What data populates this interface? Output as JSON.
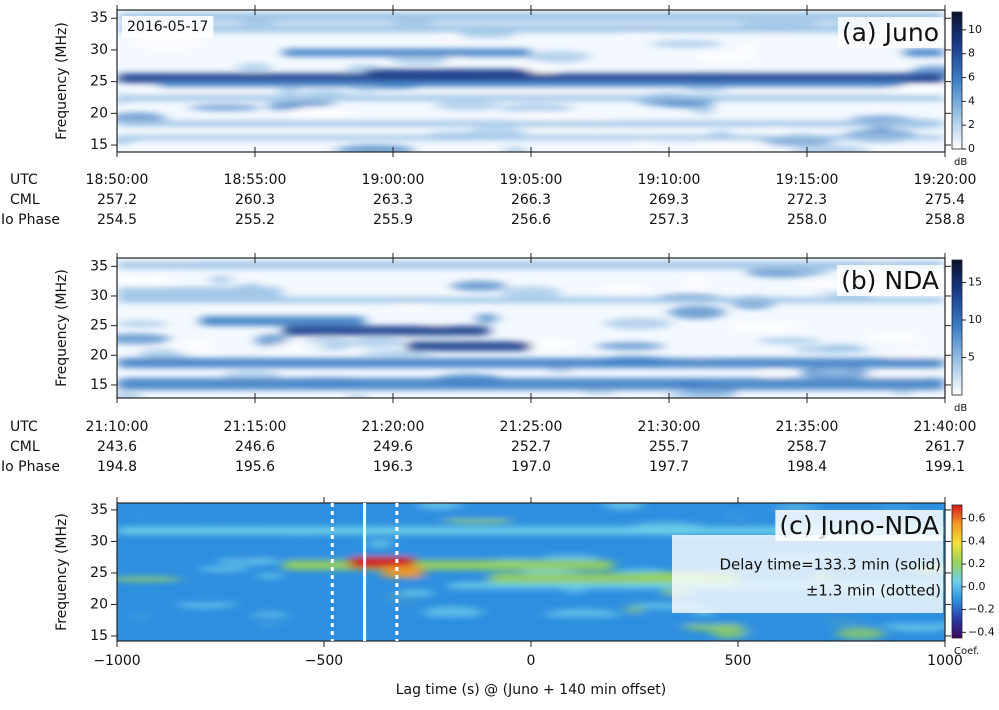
{
  "chart_data": [
    {
      "type": "spectrogram",
      "title": "(a) Juno",
      "annotation": "2016-05-17",
      "y_label": "Frequency (MHz)",
      "ylim": [
        13.9,
        36.3
      ],
      "yticks": [
        15,
        20,
        25,
        30,
        35
      ],
      "colorbar": {
        "label": "dB",
        "clim": [
          0,
          11.5
        ],
        "ticks": [
          0,
          2,
          4,
          6,
          8,
          10
        ],
        "colors": [
          "#ffffff",
          "#9cc3e6",
          "#3f7fc4",
          "#1b3f8c",
          "#08122e"
        ]
      },
      "x_rows": [
        {
          "name": "UTC",
          "labels": [
            "18:50:00",
            "18:55:00",
            "19:00:00",
            "19:05:00",
            "19:10:00",
            "19:15:00",
            "19:20:00"
          ]
        },
        {
          "name": "CML",
          "labels": [
            "257.2",
            "260.3",
            "263.3",
            "266.3",
            "269.3",
            "272.3",
            "275.4"
          ]
        },
        {
          "name": "Io Phase",
          "labels": [
            "254.5",
            "255.2",
            "255.9",
            "256.6",
            "257.3",
            "258.0",
            "258.8"
          ]
        }
      ]
    },
    {
      "type": "spectrogram",
      "title": "(b) NDA",
      "y_label": "Frequency (MHz)",
      "ylim": [
        12.8,
        36.4
      ],
      "yticks": [
        15,
        20,
        25,
        30,
        35
      ],
      "colorbar": {
        "label": "dB",
        "clim": [
          0,
          18
        ],
        "ticks": [
          5,
          10,
          15
        ],
        "colors": [
          "#ffffff",
          "#9cc3e6",
          "#3f7fc4",
          "#1b3f8c",
          "#08122e"
        ]
      },
      "x_rows": [
        {
          "name": "UTC",
          "labels": [
            "21:10:00",
            "21:15:00",
            "21:20:00",
            "21:25:00",
            "21:30:00",
            "21:35:00",
            "21:40:00"
          ]
        },
        {
          "name": "CML",
          "labels": [
            "243.6",
            "246.6",
            "249.6",
            "252.7",
            "255.7",
            "258.7",
            "261.7"
          ]
        },
        {
          "name": "Io Phase",
          "labels": [
            "194.8",
            "195.6",
            "196.3",
            "197.0",
            "197.7",
            "198.4",
            "199.1"
          ]
        }
      ]
    },
    {
      "type": "heatmap",
      "title": "(c) Juno-NDA",
      "y_label": "Frequency (MHz)",
      "x_label": "Lag time (s) @ (Juno + 140 min offset)",
      "ylim": [
        14.2,
        36.1
      ],
      "yticks": [
        15,
        20,
        25,
        30,
        35
      ],
      "xlim": [
        -1000,
        1000
      ],
      "xticks": [
        {
          "value": -1000,
          "label": "−1000"
        },
        {
          "value": -500,
          "label": "−500"
        },
        0,
        500,
        1000
      ],
      "colorbar": {
        "label": "Coef.",
        "clim": [
          -0.45,
          0.72
        ],
        "ticks": [
          {
            "value": -0.4,
            "label": "−0.4"
          },
          {
            "value": -0.2,
            "label": "−0.2"
          },
          {
            "value": 0,
            "label": "0.0"
          },
          0.2,
          0.4,
          0.6
        ],
        "colors": [
          "#3b0a5c",
          "#2a3aa8",
          "#2f8fe0",
          "#6fd0e8",
          "#9ad35a",
          "#f2e13a",
          "#f59a22",
          "#d7191c"
        ]
      },
      "annotations": [
        "Delay time=133.3 min (solid)",
        "±1.3 min (dotted)"
      ],
      "delay_lines": [
        {
          "value": -402,
          "style": "solid"
        },
        {
          "value": -480,
          "style": "dotted"
        },
        {
          "value": -324,
          "style": "dotted"
        }
      ]
    }
  ]
}
